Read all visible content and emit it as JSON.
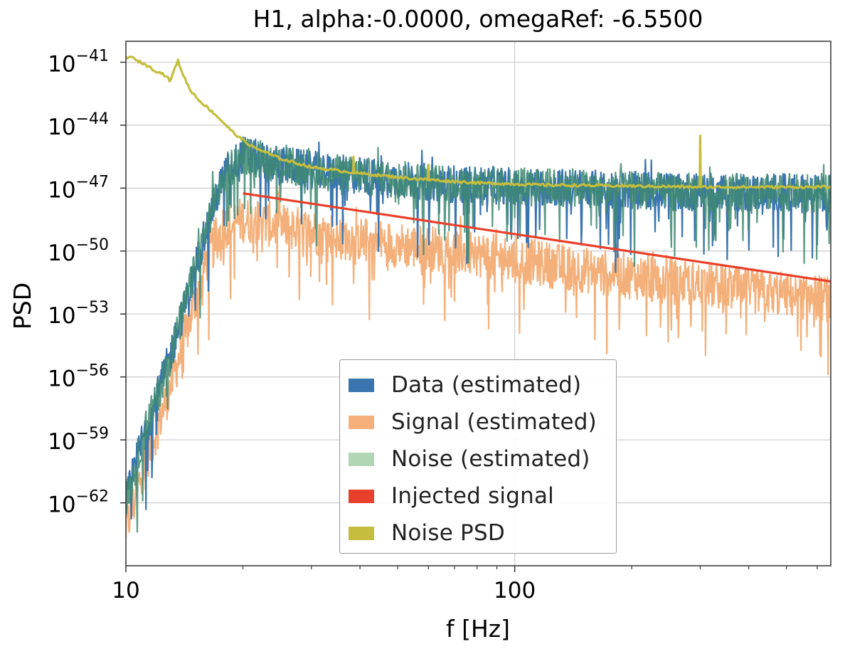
{
  "chart_data": {
    "type": "line",
    "title": "H1, alpha:-0.0000, omegaRef: -6.5500",
    "xlabel": "f [Hz]",
    "ylabel": "PSD",
    "xscale": "log",
    "yscale": "log",
    "xlim": [
      10,
      650
    ],
    "ylim_exponent": [
      -65,
      -40
    ],
    "grid": true,
    "x_ticks": [
      {
        "value": 10,
        "label": "10"
      },
      {
        "value": 100,
        "label": "100"
      }
    ],
    "y_ticks": [
      {
        "exp": -41,
        "base": "10",
        "sup": "−41"
      },
      {
        "exp": -44,
        "base": "10",
        "sup": "−44"
      },
      {
        "exp": -47,
        "base": "10",
        "sup": "−47"
      },
      {
        "exp": -50,
        "base": "10",
        "sup": "−50"
      },
      {
        "exp": -53,
        "base": "10",
        "sup": "−53"
      },
      {
        "exp": -56,
        "base": "10",
        "sup": "−56"
      },
      {
        "exp": -59,
        "base": "10",
        "sup": "−59"
      },
      {
        "exp": -62,
        "base": "10",
        "sup": "−62"
      }
    ],
    "legend_position": "lower-center",
    "series": [
      {
        "name": "Data (estimated)",
        "color": "#3b75af",
        "style": "noisy",
        "x": [
          10,
          10.5,
          11,
          12,
          13,
          14,
          15,
          16,
          17,
          18,
          20,
          25,
          35,
          50,
          70,
          100,
          150,
          200,
          300,
          400,
          500,
          650
        ],
        "log10": [
          -62,
          -60.5,
          -59,
          -57,
          -55,
          -53,
          -51,
          -49,
          -47.5,
          -46.3,
          -45.4,
          -45.9,
          -46.3,
          -46.6,
          -46.8,
          -46.9,
          -47.0,
          -47.1,
          -47.2,
          -47.2,
          -47.2,
          -47.3
        ]
      },
      {
        "name": "Signal (estimated)",
        "color": "#f4b07a",
        "style": "noisy",
        "x": [
          10,
          10.5,
          11,
          12,
          13,
          14,
          15,
          16,
          17,
          18,
          20,
          25,
          35,
          50,
          70,
          100,
          150,
          200,
          300,
          400,
          500,
          650
        ],
        "log10": [
          -63.2,
          -62,
          -60.5,
          -58.5,
          -56.5,
          -54.5,
          -52.5,
          -50.6,
          -49.5,
          -48.8,
          -48.5,
          -48.8,
          -49.3,
          -49.7,
          -50.0,
          -50.4,
          -50.9,
          -51.2,
          -51.6,
          -51.9,
          -52.1,
          -52.3
        ]
      },
      {
        "name": "Noise (estimated)",
        "color": "#b1d6b4",
        "style": "noisy",
        "x": [
          10,
          10.5,
          11,
          12,
          13,
          14,
          15,
          16,
          17,
          18,
          20,
          25,
          35,
          50,
          70,
          100,
          150,
          200,
          300,
          400,
          500,
          650
        ],
        "log10": [
          -62,
          -60.5,
          -59,
          -57,
          -55,
          -53,
          -51,
          -49,
          -47.5,
          -46.3,
          -45.4,
          -45.9,
          -46.3,
          -46.6,
          -46.8,
          -46.9,
          -47.0,
          -47.1,
          -47.2,
          -47.2,
          -47.2,
          -47.3
        ]
      },
      {
        "name": "Injected signal",
        "color": "#e8402a",
        "style": "line",
        "x": [
          20,
          650
        ],
        "log10": [
          -47.25,
          -51.45
        ]
      },
      {
        "name": "Noise PSD",
        "color": "#c4bd3e",
        "style": "line",
        "x": [
          10,
          10.2,
          10.6,
          11.2,
          11.9,
          12.6,
          13.0,
          13.3,
          13.6,
          13.9,
          14.6,
          15.4,
          17.0,
          19.0,
          21.0,
          25.0,
          30.0,
          40.0,
          55.0,
          80.0,
          120.0,
          200.0,
          300.0,
          450.0,
          650.0
        ],
        "log10": [
          -40.8,
          -40.7,
          -40.9,
          -41.1,
          -41.4,
          -41.6,
          -41.9,
          -41.4,
          -40.9,
          -41.4,
          -42.3,
          -42.8,
          -43.5,
          -44.4,
          -45.0,
          -45.6,
          -46.0,
          -46.3,
          -46.55,
          -46.75,
          -46.85,
          -46.9,
          -46.95,
          -46.95,
          -46.95
        ],
        "peaks": [
          {
            "x": 38.5,
            "log10": -45.5
          },
          {
            "x": 60.0,
            "log10": -45.9
          },
          {
            "x": 300.0,
            "log10": -44.5
          }
        ]
      }
    ],
    "legend": [
      {
        "label": "Data (estimated)",
        "color": "#3b75af"
      },
      {
        "label": "Signal (estimated)",
        "color": "#f4b07a"
      },
      {
        "label": "Noise (estimated)",
        "color": "#b1d6b4"
      },
      {
        "label": "Injected signal",
        "color": "#e8402a"
      },
      {
        "label": "Noise PSD",
        "color": "#c4bd3e"
      }
    ]
  }
}
